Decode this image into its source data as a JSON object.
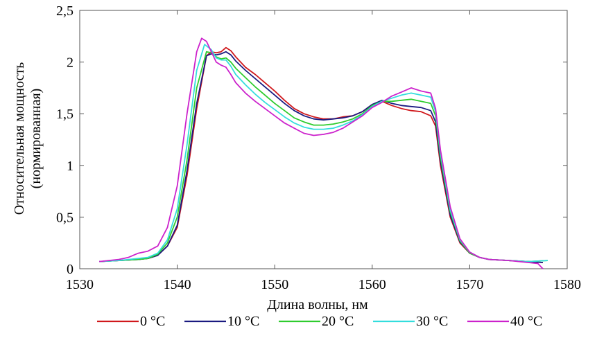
{
  "chart_data": {
    "type": "line",
    "title": "",
    "xlabel": "Длина волны, нм",
    "ylabel_lines": [
      "Относительная мощность",
      "(нормированная)"
    ],
    "xlim": [
      1530,
      1580
    ],
    "ylim": [
      0,
      2.5
    ],
    "xticks": [
      1530,
      1540,
      1550,
      1560,
      1570,
      1580
    ],
    "xtick_labels": [
      "1530",
      "1540",
      "1550",
      "1560",
      "1570",
      "1580"
    ],
    "yticks": [
      0,
      0.5,
      1,
      1.5,
      2,
      2.5
    ],
    "ytick_labels": [
      "0",
      "0,5",
      "1",
      "1,5",
      "2",
      "2,5"
    ],
    "grid": false,
    "legend_position": "bottom",
    "series": [
      {
        "name": "0 °C",
        "color": "#d0181c",
        "points": [
          [
            1532,
            0.07
          ],
          [
            1534,
            0.08
          ],
          [
            1536,
            0.09
          ],
          [
            1537,
            0.1
          ],
          [
            1538,
            0.13
          ],
          [
            1539,
            0.22
          ],
          [
            1540,
            0.4
          ],
          [
            1541,
            0.9
          ],
          [
            1542,
            1.55
          ],
          [
            1543,
            2.06
          ],
          [
            1543.5,
            2.1
          ],
          [
            1544,
            2.09
          ],
          [
            1544.5,
            2.1
          ],
          [
            1545,
            2.14
          ],
          [
            1545.5,
            2.11
          ],
          [
            1546,
            2.05
          ],
          [
            1547,
            1.95
          ],
          [
            1548,
            1.88
          ],
          [
            1549,
            1.8
          ],
          [
            1550,
            1.72
          ],
          [
            1551,
            1.63
          ],
          [
            1552,
            1.55
          ],
          [
            1553,
            1.5
          ],
          [
            1554,
            1.47
          ],
          [
            1555,
            1.45
          ],
          [
            1556,
            1.45
          ],
          [
            1557,
            1.47
          ],
          [
            1558,
            1.48
          ],
          [
            1559,
            1.52
          ],
          [
            1560,
            1.59
          ],
          [
            1561,
            1.62
          ],
          [
            1562,
            1.58
          ],
          [
            1563,
            1.55
          ],
          [
            1564,
            1.53
          ],
          [
            1565,
            1.52
          ],
          [
            1566,
            1.48
          ],
          [
            1566.5,
            1.38
          ],
          [
            1567,
            1.0
          ],
          [
            1568,
            0.5
          ],
          [
            1569,
            0.25
          ],
          [
            1570,
            0.15
          ],
          [
            1571,
            0.11
          ],
          [
            1572,
            0.09
          ],
          [
            1574,
            0.08
          ],
          [
            1576,
            0.07
          ],
          [
            1577.5,
            0.06
          ]
        ]
      },
      {
        "name": "10 °C",
        "color": "#1a1a80",
        "points": [
          [
            1532,
            0.07
          ],
          [
            1534,
            0.08
          ],
          [
            1536,
            0.09
          ],
          [
            1537,
            0.1
          ],
          [
            1538,
            0.13
          ],
          [
            1539,
            0.22
          ],
          [
            1540,
            0.42
          ],
          [
            1541,
            0.95
          ],
          [
            1542,
            1.6
          ],
          [
            1543,
            2.06
          ],
          [
            1543.5,
            2.08
          ],
          [
            1544,
            2.07
          ],
          [
            1544.5,
            2.08
          ],
          [
            1545,
            2.1
          ],
          [
            1545.5,
            2.07
          ],
          [
            1546,
            2.01
          ],
          [
            1547,
            1.92
          ],
          [
            1548,
            1.84
          ],
          [
            1549,
            1.76
          ],
          [
            1550,
            1.68
          ],
          [
            1551,
            1.6
          ],
          [
            1552,
            1.53
          ],
          [
            1553,
            1.48
          ],
          [
            1554,
            1.45
          ],
          [
            1555,
            1.44
          ],
          [
            1556,
            1.45
          ],
          [
            1557,
            1.46
          ],
          [
            1558,
            1.48
          ],
          [
            1559,
            1.52
          ],
          [
            1560,
            1.59
          ],
          [
            1561,
            1.63
          ],
          [
            1562,
            1.6
          ],
          [
            1563,
            1.58
          ],
          [
            1564,
            1.57
          ],
          [
            1565,
            1.56
          ],
          [
            1566,
            1.53
          ],
          [
            1566.5,
            1.42
          ],
          [
            1567,
            1.04
          ],
          [
            1568,
            0.52
          ],
          [
            1569,
            0.26
          ],
          [
            1570,
            0.15
          ],
          [
            1571,
            0.11
          ],
          [
            1572,
            0.09
          ],
          [
            1574,
            0.08
          ],
          [
            1576,
            0.07
          ],
          [
            1577.5,
            0.06
          ]
        ]
      },
      {
        "name": "20 °C",
        "color": "#2ecc2e",
        "points": [
          [
            1532,
            0.07
          ],
          [
            1534,
            0.08
          ],
          [
            1536,
            0.09
          ],
          [
            1537,
            0.1
          ],
          [
            1538,
            0.14
          ],
          [
            1539,
            0.25
          ],
          [
            1540,
            0.5
          ],
          [
            1541,
            1.05
          ],
          [
            1542,
            1.75
          ],
          [
            1543,
            2.1
          ],
          [
            1543.5,
            2.09
          ],
          [
            1544,
            2.05
          ],
          [
            1544.5,
            2.03
          ],
          [
            1545,
            2.04
          ],
          [
            1545.5,
            2.0
          ],
          [
            1546,
            1.94
          ],
          [
            1547,
            1.85
          ],
          [
            1548,
            1.76
          ],
          [
            1549,
            1.68
          ],
          [
            1550,
            1.6
          ],
          [
            1551,
            1.53
          ],
          [
            1552,
            1.46
          ],
          [
            1553,
            1.42
          ],
          [
            1554,
            1.39
          ],
          [
            1555,
            1.39
          ],
          [
            1556,
            1.4
          ],
          [
            1557,
            1.42
          ],
          [
            1558,
            1.45
          ],
          [
            1559,
            1.5
          ],
          [
            1560,
            1.58
          ],
          [
            1561,
            1.62
          ],
          [
            1562,
            1.62
          ],
          [
            1563,
            1.63
          ],
          [
            1564,
            1.64
          ],
          [
            1565,
            1.62
          ],
          [
            1566,
            1.6
          ],
          [
            1566.5,
            1.48
          ],
          [
            1567,
            1.08
          ],
          [
            1568,
            0.55
          ],
          [
            1569,
            0.27
          ],
          [
            1570,
            0.15
          ],
          [
            1571,
            0.11
          ],
          [
            1572,
            0.09
          ],
          [
            1574,
            0.08
          ],
          [
            1576,
            0.07
          ],
          [
            1578,
            0.08
          ]
        ]
      },
      {
        "name": "30 °C",
        "color": "#33dddd",
        "points": [
          [
            1532,
            0.07
          ],
          [
            1534,
            0.08
          ],
          [
            1536,
            0.1
          ],
          [
            1537,
            0.11
          ],
          [
            1538,
            0.15
          ],
          [
            1539,
            0.28
          ],
          [
            1540,
            0.58
          ],
          [
            1541,
            1.2
          ],
          [
            1542,
            1.92
          ],
          [
            1542.8,
            2.17
          ],
          [
            1543.5,
            2.12
          ],
          [
            1544,
            2.04
          ],
          [
            1544.5,
            2.02
          ],
          [
            1545,
            2.02
          ],
          [
            1545.5,
            1.96
          ],
          [
            1546,
            1.88
          ],
          [
            1547,
            1.78
          ],
          [
            1548,
            1.69
          ],
          [
            1549,
            1.61
          ],
          [
            1550,
            1.54
          ],
          [
            1551,
            1.47
          ],
          [
            1552,
            1.41
          ],
          [
            1553,
            1.37
          ],
          [
            1554,
            1.35
          ],
          [
            1555,
            1.35
          ],
          [
            1556,
            1.36
          ],
          [
            1557,
            1.39
          ],
          [
            1558,
            1.43
          ],
          [
            1559,
            1.49
          ],
          [
            1560,
            1.57
          ],
          [
            1561,
            1.62
          ],
          [
            1562,
            1.65
          ],
          [
            1563,
            1.68
          ],
          [
            1564,
            1.7
          ],
          [
            1565,
            1.68
          ],
          [
            1566,
            1.66
          ],
          [
            1566.5,
            1.52
          ],
          [
            1567,
            1.12
          ],
          [
            1568,
            0.57
          ],
          [
            1569,
            0.28
          ],
          [
            1570,
            0.16
          ],
          [
            1571,
            0.11
          ],
          [
            1572,
            0.09
          ],
          [
            1574,
            0.08
          ],
          [
            1576,
            0.07
          ],
          [
            1578,
            0.08
          ]
        ]
      },
      {
        "name": "40 °C",
        "color": "#cc22cc",
        "points": [
          [
            1532,
            0.07
          ],
          [
            1534,
            0.09
          ],
          [
            1535,
            0.11
          ],
          [
            1536,
            0.15
          ],
          [
            1537,
            0.17
          ],
          [
            1538,
            0.22
          ],
          [
            1539,
            0.4
          ],
          [
            1540,
            0.8
          ],
          [
            1541,
            1.5
          ],
          [
            1542,
            2.1
          ],
          [
            1542.5,
            2.23
          ],
          [
            1543,
            2.2
          ],
          [
            1543.5,
            2.1
          ],
          [
            1544,
            2.0
          ],
          [
            1544.5,
            1.97
          ],
          [
            1545,
            1.95
          ],
          [
            1545.5,
            1.88
          ],
          [
            1546,
            1.8
          ],
          [
            1547,
            1.7
          ],
          [
            1548,
            1.62
          ],
          [
            1549,
            1.55
          ],
          [
            1550,
            1.48
          ],
          [
            1551,
            1.41
          ],
          [
            1552,
            1.36
          ],
          [
            1553,
            1.31
          ],
          [
            1554,
            1.29
          ],
          [
            1555,
            1.3
          ],
          [
            1556,
            1.32
          ],
          [
            1557,
            1.36
          ],
          [
            1558,
            1.42
          ],
          [
            1559,
            1.48
          ],
          [
            1560,
            1.56
          ],
          [
            1561,
            1.61
          ],
          [
            1562,
            1.67
          ],
          [
            1563,
            1.71
          ],
          [
            1564,
            1.75
          ],
          [
            1565,
            1.72
          ],
          [
            1566,
            1.7
          ],
          [
            1566.5,
            1.55
          ],
          [
            1567,
            1.15
          ],
          [
            1568,
            0.6
          ],
          [
            1569,
            0.29
          ],
          [
            1570,
            0.16
          ],
          [
            1571,
            0.11
          ],
          [
            1572,
            0.09
          ],
          [
            1574,
            0.08
          ],
          [
            1576,
            0.06
          ],
          [
            1577,
            0.05
          ],
          [
            1577.5,
            0.0
          ]
        ]
      }
    ]
  }
}
